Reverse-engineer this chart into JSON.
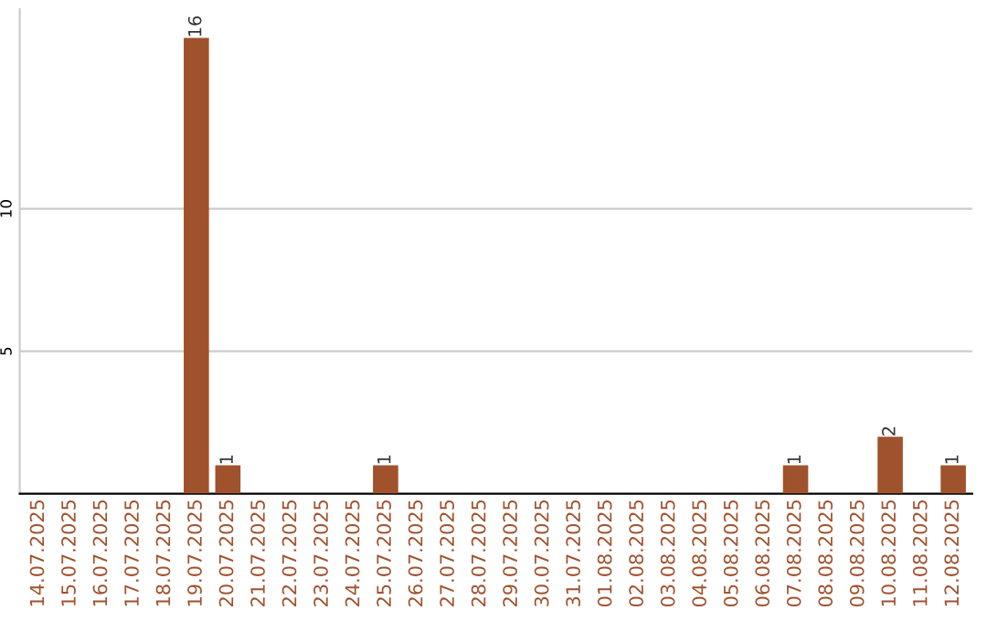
{
  "chart_data": {
    "type": "bar",
    "categories": [
      "14.07.2025",
      "15.07.2025",
      "16.07.2025",
      "17.07.2025",
      "18.07.2025",
      "19.07.2025",
      "20.07.2025",
      "21.07.2025",
      "22.07.2025",
      "23.07.2025",
      "24.07.2025",
      "25.07.2025",
      "26.07.2025",
      "27.07.2025",
      "28.07.2025",
      "29.07.2025",
      "30.07.2025",
      "31.07.2025",
      "01.08.2025",
      "02.08.2025",
      "03.08.2025",
      "04.08.2025",
      "05.08.2025",
      "06.08.2025",
      "07.08.2025",
      "08.08.2025",
      "09.08.2025",
      "10.08.2025",
      "11.08.2025",
      "12.08.2025"
    ],
    "values": [
      0,
      0,
      0,
      0,
      0,
      16,
      1,
      0,
      0,
      0,
      0,
      1,
      0,
      0,
      0,
      0,
      0,
      0,
      0,
      0,
      0,
      0,
      0,
      0,
      1,
      0,
      0,
      2,
      0,
      1
    ],
    "value_labels": [
      null,
      null,
      null,
      null,
      null,
      "16",
      "1",
      null,
      null,
      null,
      null,
      "1",
      null,
      null,
      null,
      null,
      null,
      null,
      null,
      null,
      null,
      null,
      null,
      null,
      "1",
      null,
      null,
      "2",
      null,
      "1"
    ],
    "color": "#a0522d",
    "ylim": [
      0,
      17
    ],
    "yticks": [
      5,
      10
    ],
    "grid": "y"
  }
}
